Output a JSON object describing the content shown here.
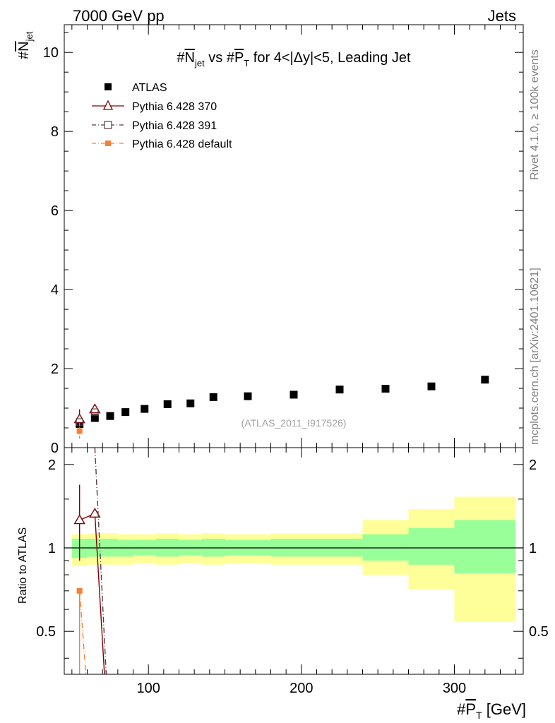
{
  "header": {
    "left": "7000 GeV pp",
    "right": "Jets"
  },
  "side_text": {
    "rivet": "Rivet 4.1.0, ≥ 100k events",
    "mcplots": "mcplots.cern.ch [arXiv:2401.10621]"
  },
  "chart_data": [
    {
      "type": "scatter",
      "panel": "main",
      "title": {
        "hash1": "#",
        "n": "N",
        "n_sub": "jet",
        "vs": " vs #",
        "p": "P",
        "p_sub": "T",
        "rest": " for 4<|Δy|<5, Leading Jet"
      },
      "ylabel": {
        "hash": "#",
        "n": "N",
        "sub": "jet"
      },
      "watermark": "(ATLAS_2011_I917526)",
      "xlim": [
        45,
        345
      ],
      "ylim": [
        0,
        10.7
      ],
      "yticks": [
        0,
        2,
        4,
        6,
        8,
        10
      ],
      "ytick_labels": [
        "0",
        "2",
        "4",
        "6",
        "8",
        "10"
      ],
      "legend": {
        "placement": "top-left",
        "entries": [
          "ATLAS",
          "Pythia 6.428 370",
          "Pythia 6.428 391",
          "Pythia 6.428 default"
        ]
      },
      "series": [
        {
          "name": "ATLAS",
          "color": "#000000",
          "marker": "square",
          "x": [
            55,
            65,
            75,
            85,
            97.5,
            112.5,
            127.5,
            142.5,
            165,
            195,
            225,
            255,
            285,
            320
          ],
          "y": [
            0.6,
            0.75,
            0.8,
            0.9,
            0.98,
            1.1,
            1.12,
            1.28,
            1.3,
            1.34,
            1.47,
            1.49,
            1.55,
            1.72
          ]
        },
        {
          "name": "Pythia 6.428 370",
          "color": "#800000",
          "marker": "triangle-open",
          "x": [
            55,
            65
          ],
          "y": [
            0.72,
            0.97
          ],
          "yerr": [
            0.25,
            0
          ]
        },
        {
          "name": "Pythia 6.428 391",
          "color": "#5a3a4a",
          "marker": "square-open",
          "x": [
            55,
            65
          ],
          "y": [
            0.65,
            0.9
          ]
        },
        {
          "name": "Pythia 6.428 default",
          "color": "#f88030",
          "marker": "square",
          "x": [
            55
          ],
          "y": [
            0.42
          ],
          "yerr": [
            0.2
          ]
        }
      ]
    },
    {
      "type": "line",
      "panel": "ratio",
      "ylabel": "Ratio to ATLAS",
      "xlabel": {
        "hash": "#",
        "p": "P",
        "sub": "T",
        "unit": " [GeV]"
      },
      "xlim": [
        45,
        345
      ],
      "ylim": [
        0.35,
        2.3
      ],
      "log_y": true,
      "xticks": [
        100,
        200,
        300
      ],
      "xtick_labels": [
        "100",
        "200",
        "300"
      ],
      "yticks": [
        0.5,
        1,
        2
      ],
      "ytick_labels": [
        "0.5",
        "1",
        "2"
      ],
      "bands": {
        "edges": [
          50,
          60,
          70,
          80,
          90,
          105,
          120,
          135,
          150,
          180,
          210,
          240,
          270,
          300,
          340
        ],
        "yellow_lo": [
          0.86,
          0.87,
          0.87,
          0.87,
          0.88,
          0.87,
          0.88,
          0.87,
          0.88,
          0.87,
          0.87,
          0.8,
          0.71,
          0.54
        ],
        "yellow_hi": [
          1.12,
          1.13,
          1.13,
          1.12,
          1.12,
          1.13,
          1.12,
          1.13,
          1.12,
          1.13,
          1.13,
          1.26,
          1.38,
          1.53
        ],
        "green_lo": [
          0.92,
          0.93,
          0.93,
          0.93,
          0.94,
          0.93,
          0.94,
          0.93,
          0.94,
          0.93,
          0.93,
          0.9,
          0.87,
          0.81
        ],
        "green_hi": [
          1.08,
          1.08,
          1.08,
          1.07,
          1.07,
          1.08,
          1.07,
          1.08,
          1.07,
          1.08,
          1.08,
          1.12,
          1.18,
          1.26
        ]
      },
      "series": [
        {
          "name": "Pythia 6.428 370",
          "color": "#800000",
          "x": [
            55,
            65
          ],
          "y": [
            1.26,
            1.33
          ],
          "yerr_lo": [
            0.36,
            0
          ],
          "yerr_hi": [
            0.43,
            0
          ],
          "extend_to": [
            72,
            0.3
          ]
        },
        {
          "name": "Pythia 6.428 391",
          "color": "#5a3a4a",
          "x": [
            65,
            73
          ],
          "y": [
            2.3,
            0.3
          ]
        },
        {
          "name": "Pythia 6.428 default",
          "color": "#f88030",
          "x": [
            55,
            60
          ],
          "y": [
            0.7,
            0.3
          ],
          "yerr_lo": [
            0.35,
            0
          ],
          "yerr_hi": [
            0.0,
            0
          ]
        }
      ]
    }
  ]
}
